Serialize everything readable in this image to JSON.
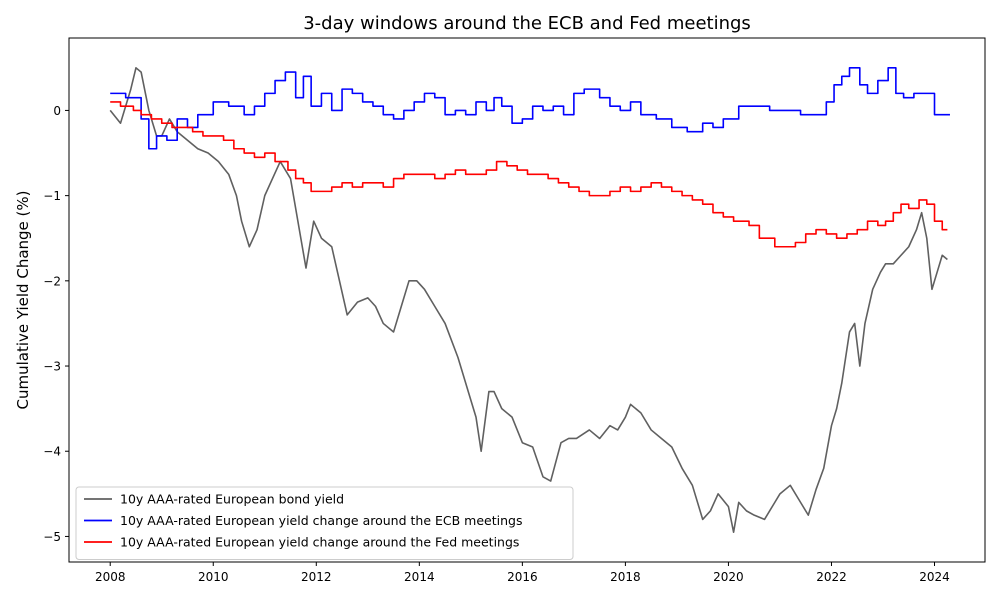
{
  "chart_data": {
    "type": "line",
    "title": "3-day windows around the ECB and Fed meetings",
    "xlabel": "",
    "ylabel": "Cumulative Yield Change (%)",
    "xlim": [
      2007.2,
      2024.98
    ],
    "ylim": [
      -5.3,
      0.85
    ],
    "x_ticks": [
      2008,
      2010,
      2012,
      2014,
      2016,
      2018,
      2020,
      2022,
      2024
    ],
    "y_ticks": [
      0,
      -1,
      -2,
      -3,
      -4,
      -5
    ],
    "y_tick_labels": [
      "0",
      "−1",
      "−2",
      "−3",
      "−4",
      "−5"
    ],
    "grid": false,
    "legend_position": "lower-left",
    "series": [
      {
        "name": "10y AAA-rated European bond yield",
        "color": "#606060",
        "step": false,
        "x": [
          2008.0,
          2008.2,
          2008.4,
          2008.5,
          2008.6,
          2008.75,
          2008.9,
          2009.0,
          2009.15,
          2009.3,
          2009.5,
          2009.7,
          2009.9,
          2010.1,
          2010.3,
          2010.45,
          2010.55,
          2010.7,
          2010.85,
          2011.0,
          2011.15,
          2011.3,
          2011.5,
          2011.7,
          2011.8,
          2011.95,
          2012.1,
          2012.3,
          2012.45,
          2012.6,
          2012.8,
          2013.0,
          2013.15,
          2013.3,
          2013.5,
          2013.65,
          2013.8,
          2013.95,
          2014.1,
          2014.3,
          2014.5,
          2014.75,
          2015.0,
          2015.1,
          2015.2,
          2015.35,
          2015.45,
          2015.6,
          2015.8,
          2016.0,
          2016.2,
          2016.4,
          2016.55,
          2016.75,
          2016.9,
          2017.05,
          2017.3,
          2017.5,
          2017.7,
          2017.85,
          2018.0,
          2018.1,
          2018.3,
          2018.5,
          2018.7,
          2018.9,
          2019.1,
          2019.3,
          2019.5,
          2019.65,
          2019.8,
          2020.0,
          2020.1,
          2020.2,
          2020.35,
          2020.5,
          2020.7,
          2020.9,
          2021.0,
          2021.2,
          2021.4,
          2021.55,
          2021.7,
          2021.85,
          2022.0,
          2022.1,
          2022.2,
          2022.35,
          2022.45,
          2022.55,
          2022.65,
          2022.8,
          2022.95,
          2023.05,
          2023.2,
          2023.35,
          2023.5,
          2023.65,
          2023.75,
          2023.85,
          2023.95,
          2024.05,
          2024.15,
          2024.25
        ],
        "y": [
          0.0,
          -0.15,
          0.25,
          0.5,
          0.45,
          0.0,
          -0.3,
          -0.3,
          -0.1,
          -0.25,
          -0.35,
          -0.45,
          -0.5,
          -0.6,
          -0.75,
          -1.0,
          -1.3,
          -1.6,
          -1.4,
          -1.0,
          -0.8,
          -0.6,
          -0.8,
          -1.5,
          -1.85,
          -1.3,
          -1.5,
          -1.6,
          -2.0,
          -2.4,
          -2.25,
          -2.2,
          -2.3,
          -2.5,
          -2.6,
          -2.3,
          -2.0,
          -2.0,
          -2.1,
          -2.3,
          -2.5,
          -2.9,
          -3.4,
          -3.6,
          -4.0,
          -3.3,
          -3.3,
          -3.5,
          -3.6,
          -3.9,
          -3.95,
          -4.3,
          -4.35,
          -3.9,
          -3.85,
          -3.85,
          -3.75,
          -3.85,
          -3.7,
          -3.75,
          -3.6,
          -3.45,
          -3.55,
          -3.75,
          -3.85,
          -3.95,
          -4.2,
          -4.4,
          -4.8,
          -4.7,
          -4.5,
          -4.65,
          -4.95,
          -4.6,
          -4.7,
          -4.75,
          -4.8,
          -4.6,
          -4.5,
          -4.4,
          -4.6,
          -4.75,
          -4.45,
          -4.2,
          -3.7,
          -3.5,
          -3.2,
          -2.6,
          -2.5,
          -3.0,
          -2.5,
          -2.1,
          -1.9,
          -1.8,
          -1.8,
          -1.7,
          -1.6,
          -1.4,
          -1.2,
          -1.5,
          -2.1,
          -1.9,
          -1.7,
          -1.75
        ]
      },
      {
        "name": "10y AAA-rated European yield change around the ECB meetings",
        "color": "#0000ff",
        "step": true,
        "x": [
          2008.0,
          2008.3,
          2008.6,
          2008.75,
          2008.9,
          2009.1,
          2009.3,
          2009.5,
          2009.7,
          2010.0,
          2010.3,
          2010.6,
          2010.8,
          2011.0,
          2011.2,
          2011.4,
          2011.6,
          2011.75,
          2011.9,
          2012.1,
          2012.3,
          2012.5,
          2012.7,
          2012.9,
          2013.1,
          2013.3,
          2013.5,
          2013.7,
          2013.9,
          2014.1,
          2014.3,
          2014.5,
          2014.7,
          2014.9,
          2015.1,
          2015.3,
          2015.45,
          2015.6,
          2015.8,
          2016.0,
          2016.2,
          2016.4,
          2016.6,
          2016.8,
          2017.0,
          2017.2,
          2017.5,
          2017.7,
          2017.9,
          2018.1,
          2018.3,
          2018.6,
          2018.9,
          2019.2,
          2019.5,
          2019.7,
          2019.9,
          2020.2,
          2020.5,
          2020.8,
          2021.1,
          2021.4,
          2021.7,
          2021.9,
          2022.05,
          2022.2,
          2022.35,
          2022.55,
          2022.7,
          2022.9,
          2023.1,
          2023.25,
          2023.4,
          2023.6,
          2023.8,
          2024.0,
          2024.2
        ],
        "y": [
          0.2,
          0.15,
          -0.1,
          -0.45,
          -0.3,
          -0.35,
          -0.1,
          -0.2,
          -0.05,
          0.1,
          0.05,
          -0.05,
          0.05,
          0.2,
          0.35,
          0.45,
          0.15,
          0.4,
          0.05,
          0.2,
          0.0,
          0.25,
          0.2,
          0.1,
          0.05,
          -0.05,
          -0.1,
          0.0,
          0.1,
          0.2,
          0.15,
          -0.05,
          0.0,
          -0.05,
          0.1,
          0.0,
          0.15,
          0.05,
          -0.15,
          -0.1,
          0.05,
          0.0,
          0.05,
          -0.05,
          0.2,
          0.25,
          0.15,
          0.05,
          0.0,
          0.1,
          -0.05,
          -0.1,
          -0.2,
          -0.25,
          -0.15,
          -0.2,
          -0.1,
          0.05,
          0.05,
          0.0,
          0.0,
          -0.05,
          -0.05,
          0.1,
          0.3,
          0.4,
          0.5,
          0.3,
          0.2,
          0.35,
          0.5,
          0.2,
          0.15,
          0.2,
          0.2,
          -0.05,
          -0.05
        ]
      },
      {
        "name": "10y AAA-rated European yield change around the Fed meetings",
        "color": "#ff0000",
        "step": true,
        "x": [
          2008.0,
          2008.2,
          2008.45,
          2008.6,
          2008.8,
          2009.0,
          2009.2,
          2009.4,
          2009.6,
          2009.8,
          2010.0,
          2010.2,
          2010.4,
          2010.6,
          2010.8,
          2011.0,
          2011.2,
          2011.45,
          2011.6,
          2011.75,
          2011.9,
          2012.1,
          2012.3,
          2012.5,
          2012.7,
          2012.9,
          2013.1,
          2013.3,
          2013.5,
          2013.7,
          2013.9,
          2014.1,
          2014.3,
          2014.5,
          2014.7,
          2014.9,
          2015.1,
          2015.3,
          2015.5,
          2015.7,
          2015.9,
          2016.1,
          2016.3,
          2016.5,
          2016.7,
          2016.9,
          2017.1,
          2017.3,
          2017.5,
          2017.7,
          2017.9,
          2018.1,
          2018.3,
          2018.5,
          2018.7,
          2018.9,
          2019.1,
          2019.3,
          2019.5,
          2019.7,
          2019.9,
          2020.1,
          2020.4,
          2020.6,
          2020.9,
          2021.1,
          2021.3,
          2021.5,
          2021.7,
          2021.9,
          2022.1,
          2022.3,
          2022.5,
          2022.7,
          2022.9,
          2023.05,
          2023.2,
          2023.35,
          2023.5,
          2023.7,
          2023.85,
          2024.0,
          2024.15
        ],
        "y": [
          0.1,
          0.05,
          0.0,
          -0.05,
          -0.1,
          -0.15,
          -0.2,
          -0.2,
          -0.25,
          -0.3,
          -0.3,
          -0.35,
          -0.45,
          -0.5,
          -0.55,
          -0.5,
          -0.6,
          -0.7,
          -0.8,
          -0.85,
          -0.95,
          -0.95,
          -0.9,
          -0.85,
          -0.9,
          -0.85,
          -0.85,
          -0.9,
          -0.8,
          -0.75,
          -0.75,
          -0.75,
          -0.8,
          -0.75,
          -0.7,
          -0.75,
          -0.75,
          -0.7,
          -0.6,
          -0.65,
          -0.7,
          -0.75,
          -0.75,
          -0.8,
          -0.85,
          -0.9,
          -0.95,
          -1.0,
          -1.0,
          -0.95,
          -0.9,
          -0.95,
          -0.9,
          -0.85,
          -0.9,
          -0.95,
          -1.0,
          -1.05,
          -1.1,
          -1.2,
          -1.25,
          -1.3,
          -1.35,
          -1.5,
          -1.6,
          -1.6,
          -1.55,
          -1.45,
          -1.4,
          -1.45,
          -1.5,
          -1.45,
          -1.4,
          -1.3,
          -1.35,
          -1.3,
          -1.2,
          -1.1,
          -1.15,
          -1.05,
          -1.1,
          -1.3,
          -1.4
        ]
      }
    ]
  }
}
